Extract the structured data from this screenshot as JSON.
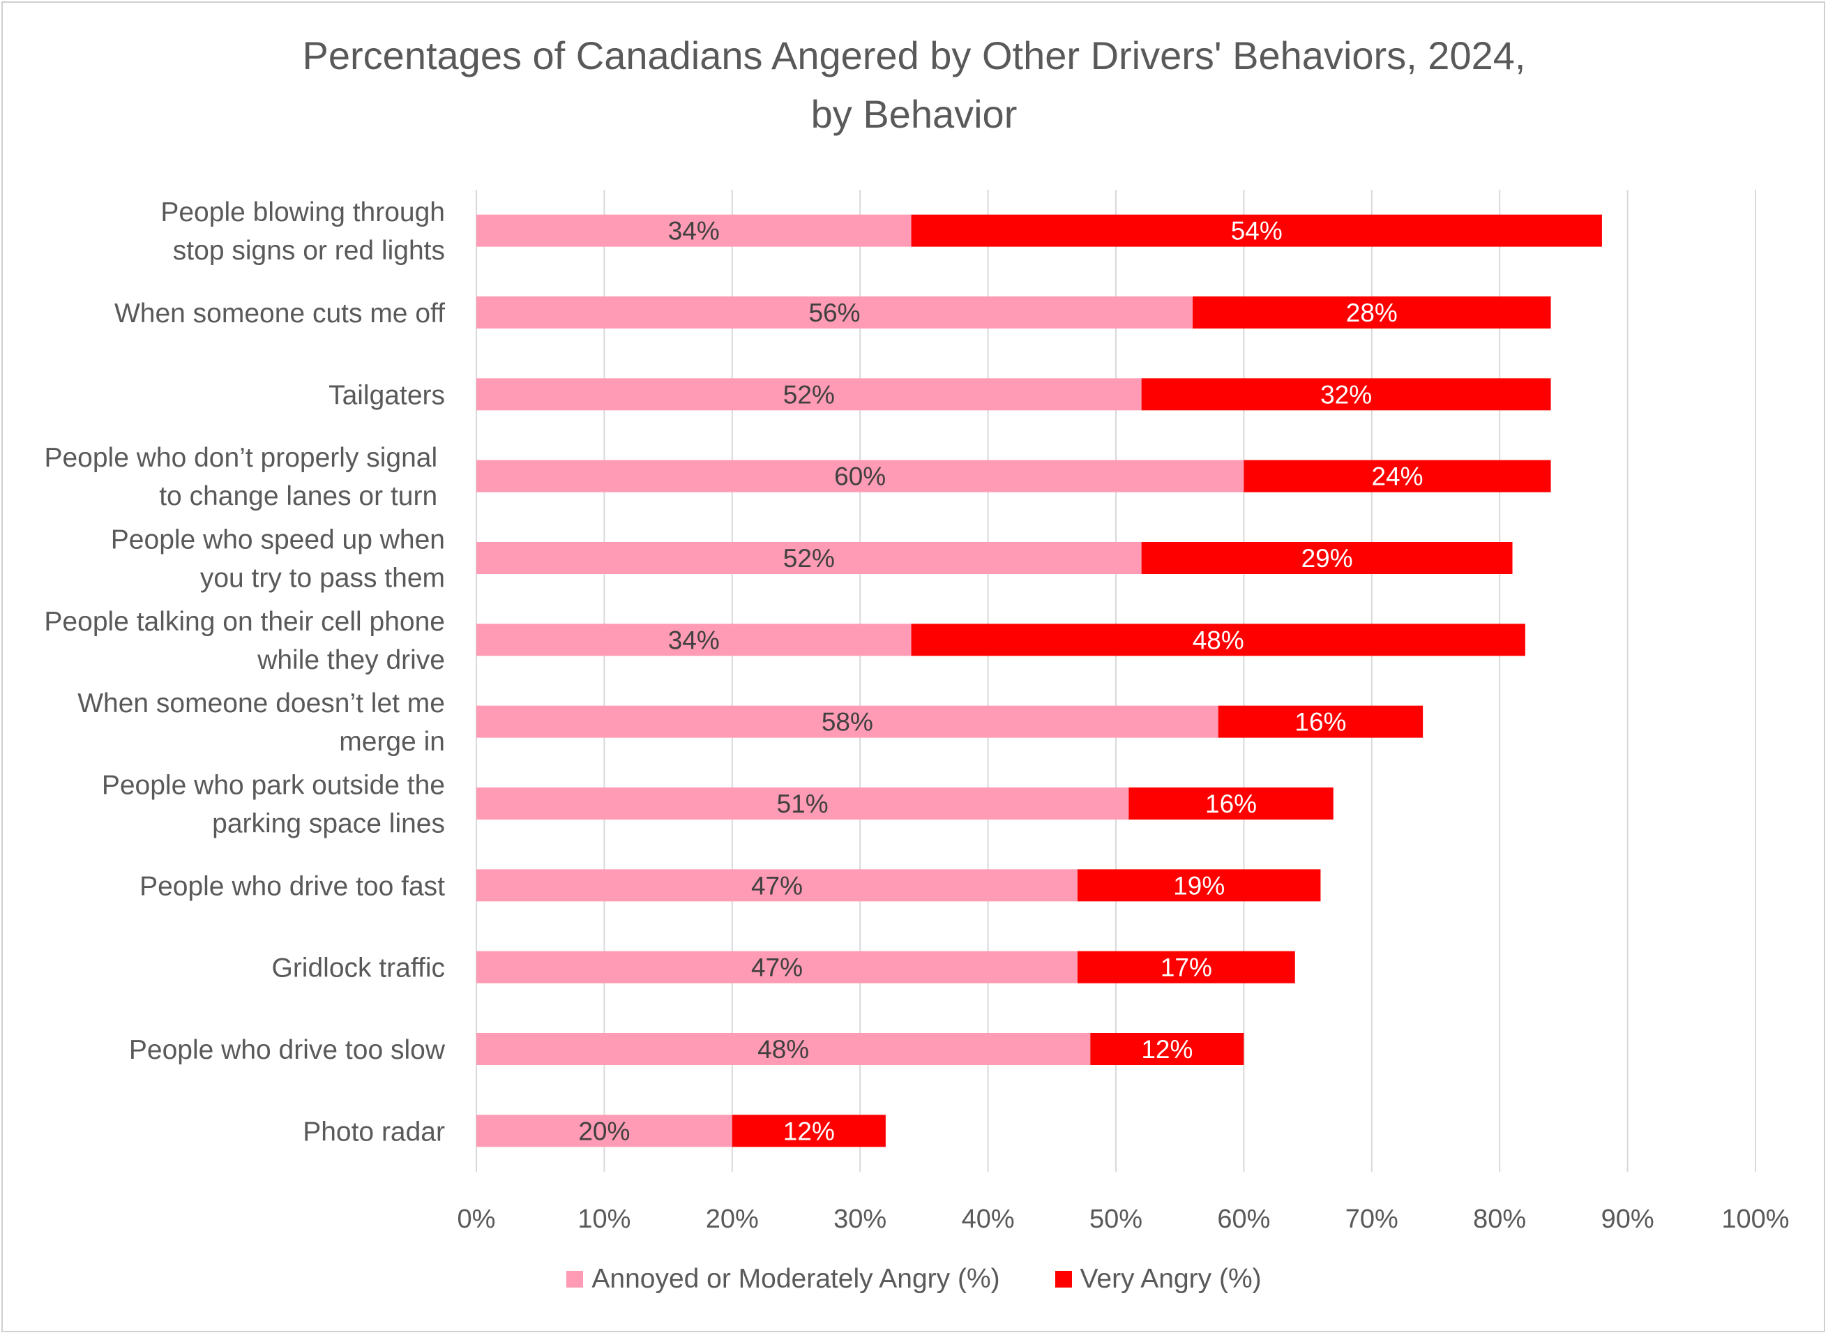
{
  "colors": {
    "annoyed": "#ff9bb4",
    "very_angry": "#ff0000",
    "grid": "#d9d9d9",
    "text": "#595959",
    "annoyed_label": "#404040",
    "very_angry_label": "#ffffff"
  },
  "chart_data": {
    "type": "bar",
    "orientation": "horizontal",
    "stacked": true,
    "title_lines": [
      "Percentages of Canadians Angered by Other Drivers' Behaviors, 2024,",
      "by Behavior"
    ],
    "categories": [
      [
        "People blowing through",
        "stop signs or red lights"
      ],
      [
        "When someone cuts me off"
      ],
      [
        "Tailgaters"
      ],
      [
        "People who don’t properly signal ",
        "to change lanes or turn "
      ],
      [
        "People who speed up when",
        "you try to pass them"
      ],
      [
        "People talking on their cell phone",
        "while they drive"
      ],
      [
        "When someone doesn’t let me",
        "merge in"
      ],
      [
        "People who park outside the",
        "parking space lines"
      ],
      [
        "People who drive too fast"
      ],
      [
        "Gridlock traffic"
      ],
      [
        "People who drive too slow"
      ],
      [
        "Photo radar"
      ]
    ],
    "series": [
      {
        "name": "Annoyed or Moderately Angry (%)",
        "values": [
          34,
          56,
          52,
          60,
          52,
          34,
          58,
          51,
          47,
          47,
          48,
          20
        ],
        "labels": [
          "34%",
          "56%",
          "52%",
          "60%",
          "52%",
          "34%",
          "58%",
          "51%",
          "47%",
          "47%",
          "48%",
          "20%"
        ]
      },
      {
        "name": "Very Angry (%)",
        "values": [
          54,
          28,
          32,
          24,
          29,
          48,
          16,
          16,
          19,
          17,
          12,
          12
        ],
        "labels": [
          "54%",
          "28%",
          "32%",
          "24%",
          "29%",
          "48%",
          "16%",
          "16%",
          "19%",
          "17%",
          "12%",
          "12%"
        ]
      }
    ],
    "xlim": [
      0,
      100
    ],
    "x_ticks": [
      0,
      10,
      20,
      30,
      40,
      50,
      60,
      70,
      80,
      90,
      100
    ],
    "x_tick_labels": [
      "0%",
      "10%",
      "20%",
      "30%",
      "40%",
      "50%",
      "60%",
      "70%",
      "80%",
      "90%",
      "100%"
    ],
    "grid": true,
    "legend_position": "bottom"
  }
}
